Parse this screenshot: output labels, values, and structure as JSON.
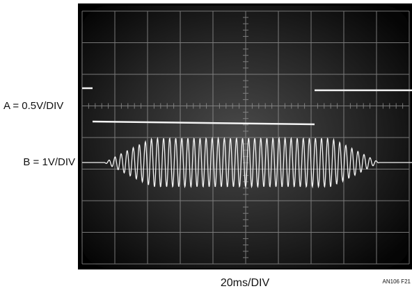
{
  "labels": {
    "channel_a": "A = 0.5V/DIV",
    "channel_b": "B = 1V/DIV",
    "timebase": "20ms/DIV",
    "figure_id": "AN106 F21"
  }
}
